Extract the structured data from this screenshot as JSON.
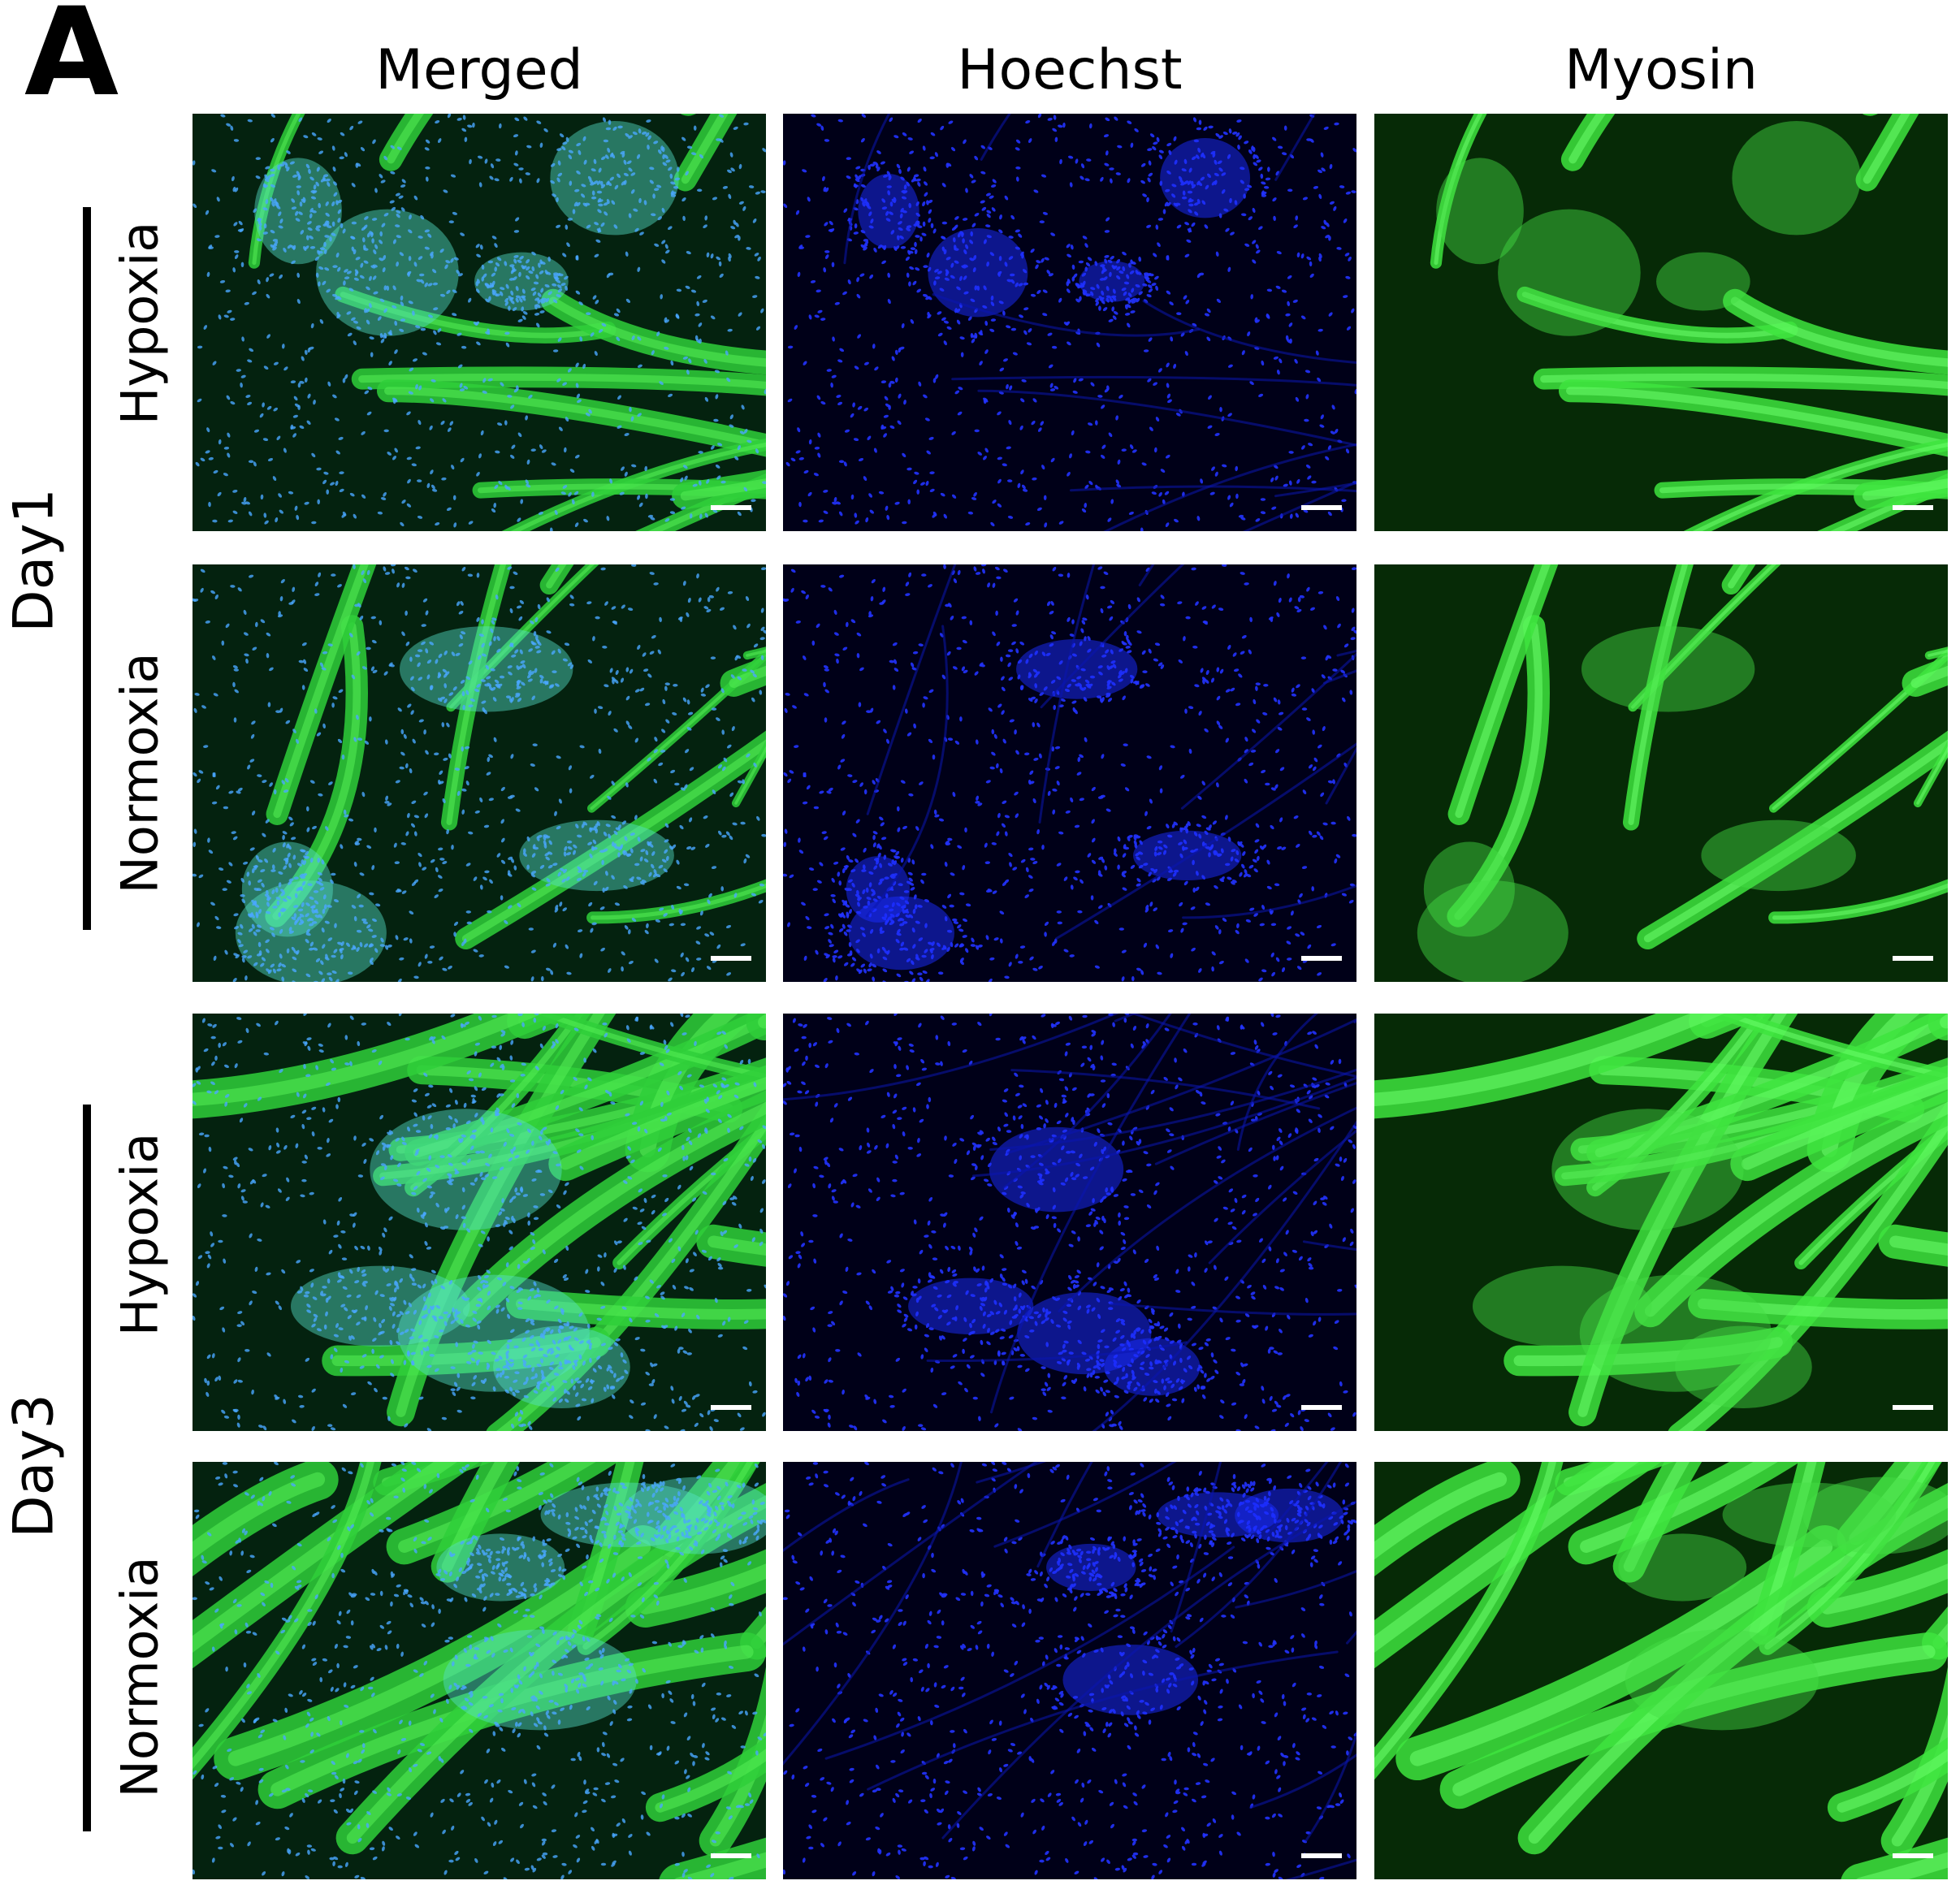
{
  "panel_letter": "A",
  "columns": [
    "Merged",
    "Hoechst",
    "Myosin"
  ],
  "days": [
    "Day1",
    "Day3"
  ],
  "conditions": [
    "Hypoxia",
    "Normoxia",
    "Hypoxia",
    "Normoxia"
  ],
  "channel_colors": {
    "hoechst": "#1010ff",
    "myosin": "#22dd22",
    "merged_cyan": "#33c8e8"
  }
}
